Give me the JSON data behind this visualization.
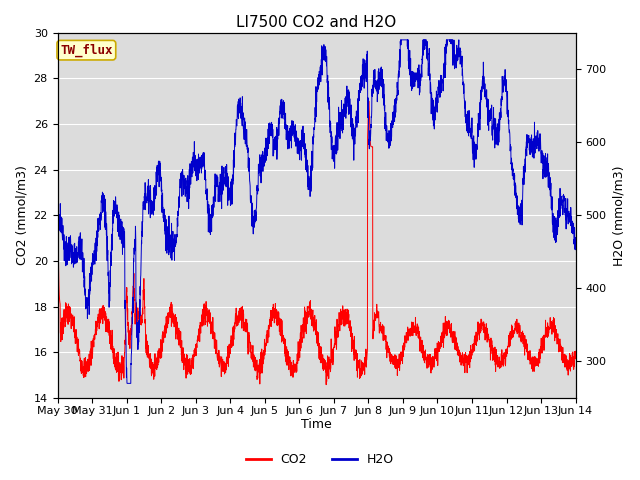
{
  "title": "LI7500 CO2 and H2O",
  "ylabel_left": "CO2 (mmol/m3)",
  "ylabel_right": "H2O (mmol/m3)",
  "xlabel": "Time",
  "ylim_left": [
    14,
    30
  ],
  "ylim_right": [
    250,
    750
  ],
  "site_label": "TW_flux",
  "site_label_color": "#8B0000",
  "site_label_bg": "#FFFFCC",
  "site_label_border": "#CCAA00",
  "bg_color": "#DCDCDC",
  "co2_color": "#FF0000",
  "h2o_color": "#0000CC",
  "legend_co2": "CO2",
  "legend_h2o": "H2O",
  "title_fontsize": 11,
  "axis_fontsize": 9,
  "tick_fontsize": 8,
  "tick_labels": [
    "May 30",
    "May 31",
    "Jun 1",
    "Jun 2",
    "Jun 3",
    "Jun 4",
    "Jun 5",
    "Jun 6",
    "Jun 7",
    "Jun 8",
    "Jun 9",
    "Jun 10",
    "Jun 11",
    "Jun 12",
    "Jun 13",
    "Jun 14"
  ]
}
